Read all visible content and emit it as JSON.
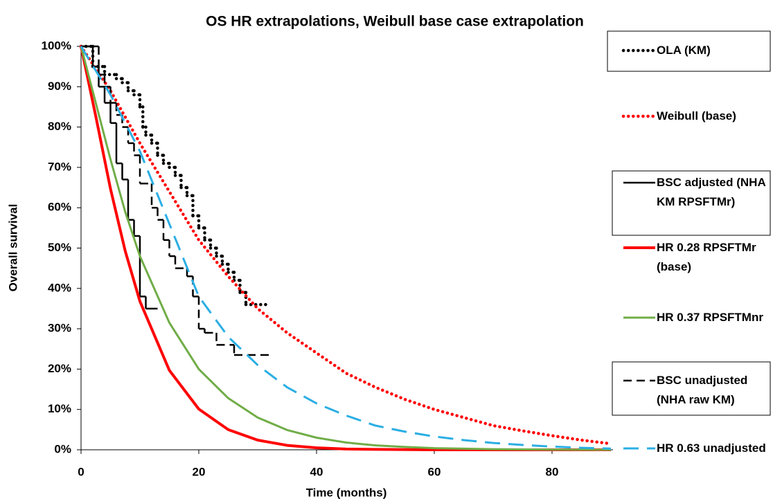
{
  "chart_data": {
    "type": "line",
    "title": "OS HR extrapolations, Weibull base case extrapolation",
    "x_label": "Time (months)",
    "y_label": "Overall survival",
    "xlim": [
      0,
      90
    ],
    "ylim": [
      0,
      100
    ],
    "xticks": [
      0,
      20,
      40,
      60,
      80
    ],
    "yticks": [
      {
        "value": 0,
        "label": "0%"
      },
      {
        "value": 10,
        "label": "10%"
      },
      {
        "value": 20,
        "label": "20%"
      },
      {
        "value": 30,
        "label": "30%"
      },
      {
        "value": 40,
        "label": "40%"
      },
      {
        "value": 50,
        "label": "50%"
      },
      {
        "value": 60,
        "label": "60%"
      },
      {
        "value": 70,
        "label": "70%"
      },
      {
        "value": 80,
        "label": "80%"
      },
      {
        "value": 90,
        "label": "90%"
      },
      {
        "value": 100,
        "label": "100%"
      }
    ],
    "grid": false,
    "legend": "right",
    "series": [
      {
        "name": "OLA (KM)",
        "color": "#000000",
        "dash": "dotted",
        "step": true,
        "x": [
          0,
          2,
          4,
          6,
          7,
          8,
          9,
          10,
          10.5,
          11,
          12,
          13,
          14,
          15,
          16,
          17,
          18,
          19,
          20,
          21,
          22,
          23,
          24,
          25,
          26,
          27,
          28,
          32
        ],
        "values": [
          100,
          95,
          93,
          92,
          91,
          89,
          88,
          85,
          80,
          78,
          76,
          73,
          71,
          70,
          68,
          65,
          63,
          58,
          55,
          52,
          50,
          48,
          46,
          44,
          42,
          39,
          36,
          36
        ]
      },
      {
        "name": "Weibull (base)",
        "color": "#ff0000",
        "dash": "dotted",
        "step": false,
        "x": [
          0,
          5,
          10,
          15,
          20,
          25,
          30,
          35,
          40,
          45,
          50,
          55,
          60,
          65,
          70,
          75,
          80,
          85,
          90
        ],
        "values": [
          100,
          89,
          76,
          64,
          52,
          43,
          35,
          29,
          24,
          19,
          15.5,
          12.5,
          10,
          8,
          6,
          4.7,
          3.5,
          2.4,
          1.5
        ]
      },
      {
        "name": "BSC adjusted (NHA KM RPSFTMr)",
        "color": "#000000",
        "dash": "solid",
        "step": true,
        "x": [
          0,
          2,
          3,
          4,
          5,
          6,
          7,
          8,
          9,
          10,
          11,
          13
        ],
        "values": [
          100,
          95,
          90,
          86,
          81,
          71,
          67,
          57,
          53,
          38,
          35,
          35
        ]
      },
      {
        "name": "HR 0.28 RPSFTMr (base)",
        "color": "#ff0000",
        "dash": "solid",
        "step": false,
        "x": [
          0,
          2.5,
          5,
          7.5,
          10,
          15,
          20,
          25,
          30,
          35,
          40,
          45,
          50,
          60,
          70,
          80,
          90
        ],
        "values": [
          100,
          82.7,
          64.7,
          49.3,
          36.8,
          19.7,
          10.1,
          5,
          2.4,
          1.1,
          0.5,
          0.2,
          0.1,
          0,
          0,
          0,
          0
        ]
      },
      {
        "name": "HR 0.37 RPSFTMnr",
        "color": "#70ad47",
        "dash": "solid",
        "step": false,
        "x": [
          0,
          2.5,
          5,
          7.5,
          10,
          15,
          20,
          25,
          30,
          35,
          40,
          45,
          50,
          55,
          60,
          70,
          80,
          90
        ],
        "values": [
          100,
          86,
          72,
          59,
          48,
          31.5,
          20,
          12.8,
          8,
          4.9,
          3,
          1.8,
          1.1,
          0.7,
          0.4,
          0.15,
          0.05,
          0
        ]
      },
      {
        "name": "BSC unadjusted (NHA raw KM)",
        "color": "#000000",
        "dash": "dashed",
        "step": true,
        "x": [
          0,
          3,
          4,
          5,
          6,
          7,
          8,
          9,
          10,
          12,
          13,
          14,
          15,
          16,
          18,
          19,
          20,
          21,
          23,
          26,
          32
        ],
        "values": [
          100,
          93,
          90,
          86,
          83,
          80,
          76,
          73,
          66,
          60,
          57,
          52,
          48,
          45,
          43,
          38,
          30,
          29,
          26,
          23.5,
          23.5
        ]
      },
      {
        "name": "HR 0.63 unadjusted",
        "color": "#2aaee4",
        "dash": "longdash",
        "step": false,
        "x": [
          0,
          5,
          10,
          15,
          20,
          25,
          30,
          35,
          40,
          45,
          50,
          55,
          60,
          65,
          70,
          75,
          80,
          85,
          90
        ],
        "values": [
          100,
          88,
          74,
          56,
          38,
          28,
          21,
          15.5,
          11.5,
          8.5,
          6,
          4.5,
          3.3,
          2.4,
          1.7,
          1.2,
          0.8,
          0.5,
          0.3
        ]
      }
    ]
  }
}
